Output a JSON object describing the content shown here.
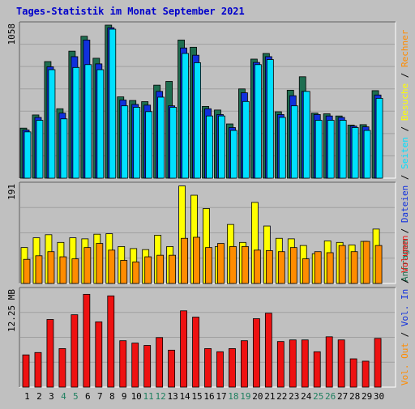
{
  "title": "Tages-Statistik im Monat September 2021",
  "colors": {
    "background": "#c0c0c0",
    "grid": "#a0a0a0",
    "title": "#0000cc",
    "hits": "#1e6e50",
    "files": "#1030dd",
    "pages": "#00e0ff",
    "visits": "#ffff00",
    "sites": "#ff8c00",
    "volume": "#ee1111",
    "weekend": "#208060",
    "axis_text": "#000000"
  },
  "right_legends": {
    "top": [
      {
        "text": "Anfragen",
        "color": "#1e6e50"
      },
      {
        "text": " / ",
        "color": "#000000"
      },
      {
        "text": "Dateien",
        "color": "#1030dd"
      },
      {
        "text": " / ",
        "color": "#000000"
      },
      {
        "text": "Seiten",
        "color": "#00e0ff"
      },
      {
        "text": " / ",
        "color": "#000000"
      },
      {
        "text": "Besuche",
        "color": "#ffff00"
      },
      {
        "text": " / ",
        "color": "#000000"
      },
      {
        "text": "Rechner",
        "color": "#ff8c00"
      }
    ],
    "bottom": [
      {
        "text": "Vol. Out",
        "color": "#ff8c00"
      },
      {
        "text": " / ",
        "color": "#000000"
      },
      {
        "text": "Vol. In",
        "color": "#1030dd"
      },
      {
        "text": " / ",
        "color": "#000000"
      },
      {
        "text": "Volumen",
        "color": "#ee1111"
      }
    ]
  },
  "chart_data": [
    {
      "type": "bar",
      "panel": "hits-files-pages",
      "max_label": "1058",
      "ylim": [
        0,
        1058
      ],
      "grid": true,
      "categories": [
        "1",
        "2",
        "3",
        "4",
        "5",
        "6",
        "7",
        "8",
        "9",
        "10",
        "11",
        "12",
        "13",
        "14",
        "15",
        "16",
        "17",
        "18",
        "19",
        "20",
        "21",
        "22",
        "23",
        "24",
        "25",
        "26",
        "27",
        "28",
        "29",
        "30"
      ],
      "weekend_days": [
        "4",
        "5",
        "11",
        "12",
        "18",
        "19",
        "25",
        "26"
      ],
      "series": [
        {
          "name": "Anfragen",
          "values": [
            346,
            437,
            806,
            480,
            878,
            981,
            829,
            1058,
            562,
            537,
            529,
            643,
            669,
            955,
            905,
            496,
            471,
            375,
            617,
            823,
            862,
            459,
            608,
            701,
            450,
            445,
            430,
            367,
            370,
            605
          ]
        },
        {
          "name": "Dateien",
          "values": [
            333,
            420,
            770,
            450,
            840,
            955,
            790,
            1040,
            540,
            510,
            505,
            600,
            500,
            900,
            850,
            480,
            440,
            350,
            590,
            800,
            840,
            440,
            570,
            600,
            440,
            430,
            420,
            360,
            355,
            575
          ]
        },
        {
          "name": "Seiten",
          "values": [
            320,
            400,
            750,
            410,
            765,
            785,
            750,
            1030,
            500,
            490,
            460,
            560,
            490,
            862,
            798,
            430,
            430,
            330,
            530,
            785,
            820,
            420,
            500,
            600,
            400,
            400,
            400,
            350,
            330,
            552
          ]
        }
      ]
    },
    {
      "type": "bar",
      "panel": "visits-sites",
      "max_label": "191",
      "ylim": [
        0,
        191
      ],
      "grid": true,
      "categories": [
        "1",
        "2",
        "3",
        "4",
        "5",
        "6",
        "7",
        "8",
        "9",
        "10",
        "11",
        "12",
        "13",
        "14",
        "15",
        "16",
        "17",
        "18",
        "19",
        "20",
        "21",
        "22",
        "23",
        "24",
        "25",
        "26",
        "27",
        "28",
        "29",
        "30"
      ],
      "series": [
        {
          "name": "Besuche",
          "values": [
            70,
            89,
            95,
            80,
            89,
            87,
            96,
            97,
            72,
            68,
            66,
            94,
            72,
            190,
            172,
            146,
            72,
            115,
            80,
            158,
            112,
            88,
            87,
            74,
            58,
            83,
            80,
            75,
            82,
            106
          ]
        },
        {
          "name": "Rechner",
          "values": [
            47,
            54,
            62,
            52,
            48,
            70,
            78,
            65,
            45,
            42,
            52,
            55,
            55,
            88,
            90,
            70,
            78,
            72,
            72,
            65,
            64,
            62,
            70,
            48,
            62,
            60,
            74,
            62,
            82,
            74
          ]
        }
      ]
    },
    {
      "type": "bar",
      "panel": "volume",
      "max_label": "12.25 MB",
      "ylim": [
        0,
        12.25
      ],
      "grid": true,
      "categories": [
        "1",
        "2",
        "3",
        "4",
        "5",
        "6",
        "7",
        "8",
        "9",
        "10",
        "11",
        "12",
        "13",
        "14",
        "15",
        "16",
        "17",
        "18",
        "19",
        "20",
        "21",
        "22",
        "23",
        "24",
        "25",
        "26",
        "27",
        "28",
        "29",
        "30"
      ],
      "series": [
        {
          "name": "Volumen",
          "values": [
            4.1,
            4.4,
            8.6,
            4.9,
            9.2,
            11.8,
            8.3,
            11.6,
            5.9,
            5.6,
            5.3,
            6.3,
            4.7,
            9.7,
            8.9,
            4.9,
            4.5,
            4.9,
            5.9,
            8.7,
            9.4,
            5.8,
            6.0,
            6.0,
            4.5,
            6.4,
            6.0,
            3.6,
            3.3,
            6.2
          ]
        }
      ]
    }
  ]
}
